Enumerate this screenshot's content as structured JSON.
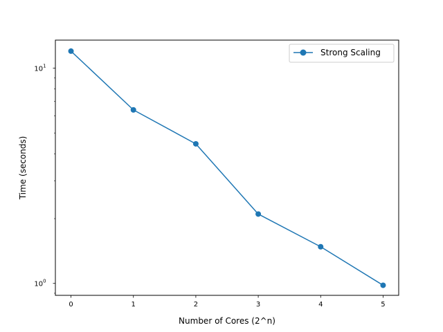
{
  "chart_data": {
    "type": "line",
    "title": "",
    "xlabel": "Number of Cores (2^n)",
    "ylabel": "Time (seconds)",
    "xlim": [
      -0.25,
      5.25
    ],
    "ylim": [
      0.88,
      13.5
    ],
    "yscale": "log",
    "grid": false,
    "legend_position": "upper right",
    "x_ticks": [
      0,
      1,
      2,
      3,
      4,
      5
    ],
    "x_tick_labels": [
      "0",
      "1",
      "2",
      "3",
      "4",
      "5"
    ],
    "y_ticks": [
      1,
      10
    ],
    "y_tick_labels": [
      "10^0",
      "10^1"
    ],
    "x": [
      0,
      1,
      2,
      3,
      4,
      5
    ],
    "series": [
      {
        "name": "Strong Scaling",
        "color": "#1f77b4",
        "marker": "circle",
        "values": [
          12.0,
          6.4,
          4.45,
          2.1,
          1.48,
          0.98
        ]
      }
    ]
  }
}
